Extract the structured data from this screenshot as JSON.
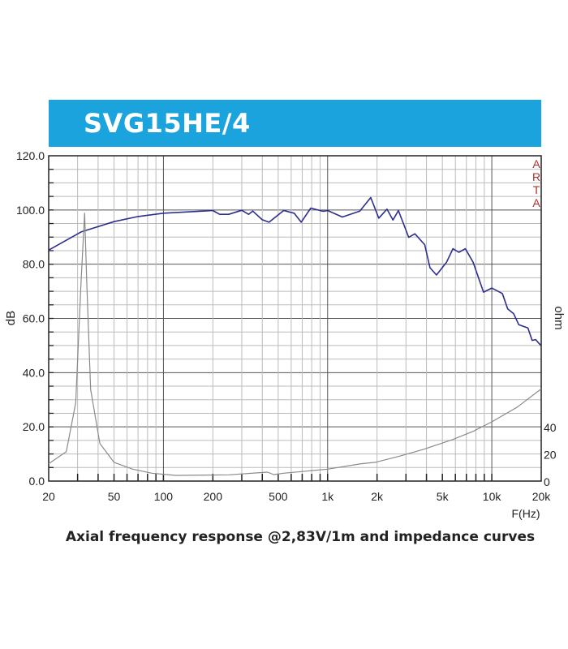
{
  "header": {
    "title": "SVG15HE/4"
  },
  "caption": "Axial frequency response @2,83V/1m and impedance curves",
  "watermark": [
    "A",
    "R",
    "T",
    "A"
  ],
  "colors": {
    "banner": "#1aa3dd",
    "frequency_response": "#2b2f8f",
    "impedance": "#8a8a8a",
    "watermark": "#b03030"
  },
  "chart_data": {
    "type": "line",
    "title": "SVG15HE/4",
    "xlabel": "F(Hz)",
    "ylabel": "dB",
    "y2label": "ohm",
    "xscale": "log",
    "xlim": [
      20,
      20000
    ],
    "ylim": [
      0,
      120
    ],
    "y2lim": [
      0,
      240
    ],
    "grid": true,
    "x_ticks": [
      20,
      50,
      100,
      200,
      500,
      1000,
      2000,
      5000,
      10000,
      20000
    ],
    "x_tick_labels": [
      "20",
      "50",
      "100",
      "200",
      "500",
      "1k",
      "2k",
      "5k",
      "10k",
      "20k"
    ],
    "y_ticks": [
      0,
      20,
      40,
      60,
      80,
      100,
      120
    ],
    "y_tick_labels": [
      "0.0",
      "20.0",
      "40.0",
      "60.0",
      "80.0",
      "100.0",
      "120.0"
    ],
    "y2_ticks": [
      0,
      20,
      40
    ],
    "y2_tick_labels": [
      "0",
      "20",
      "40"
    ],
    "series": [
      {
        "axis": "left",
        "color": "#2b2f8f",
        "x": [
          20,
          31.5,
          50,
          70,
          100,
          200,
          220,
          250,
          300,
          330,
          350,
          400,
          440,
          540,
          625,
          690,
          790,
          940,
          1000,
          1230,
          1570,
          1830,
          2050,
          2300,
          2500,
          2700,
          3120,
          3400,
          3900,
          4200,
          4600,
          5300,
          5800,
          6300,
          6900,
          7700,
          8900,
          10000,
          11600,
          12500,
          13600,
          14600,
          16600,
          17600,
          18500,
          20000
        ],
        "y": [
          85.2,
          91.9,
          95.7,
          97.6,
          98.8,
          99.8,
          98.4,
          98.4,
          99.9,
          98.4,
          99.6,
          96.4,
          95.5,
          99.8,
          98.8,
          95.5,
          100.7,
          99.5,
          99.8,
          97.4,
          99.6,
          104.6,
          97.0,
          100.3,
          96.3,
          99.8,
          89.9,
          91.2,
          87.2,
          78.7,
          76.0,
          80.7,
          85.7,
          84.4,
          85.7,
          80.7,
          69.7,
          71.2,
          69.2,
          63.5,
          61.7,
          57.7,
          56.5,
          51.9,
          52.2,
          49.9
        ]
      },
      {
        "axis": "right",
        "color": "#8a8a8a",
        "x": [
          20,
          25.6,
          29.2,
          31.5,
          33.1,
          34.1,
          36,
          41,
          50,
          65,
          85,
          119,
          250,
          430,
          470,
          540,
          1000,
          1600,
          1950,
          2800,
          3900,
          5800,
          7700,
          10000,
          14300,
          20000
        ],
        "y": [
          12.8,
          21.7,
          57.6,
          147,
          197.7,
          147,
          67.6,
          27.7,
          13.8,
          8.8,
          5.8,
          4.2,
          4.6,
          6.6,
          4.8,
          5.8,
          8.8,
          12.8,
          13.8,
          18.7,
          23.7,
          30.7,
          36.7,
          43.7,
          54.6,
          68
        ]
      }
    ]
  }
}
